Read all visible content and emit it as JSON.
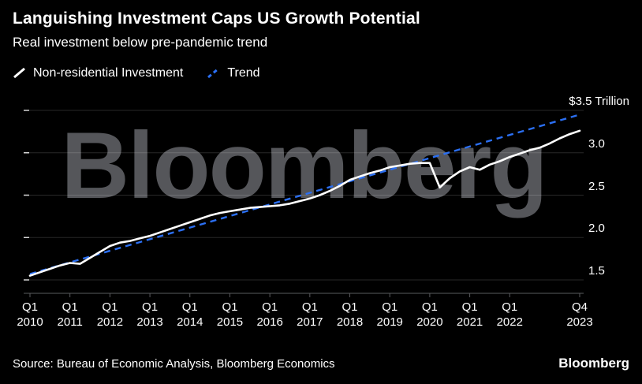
{
  "header": {
    "title": "Languishing Investment Caps US Growth Potential",
    "subtitle": "Real investment below pre-pandemic trend"
  },
  "legend": [
    {
      "label": "Non-residential Investment",
      "color": "#ffffff",
      "style": "solid"
    },
    {
      "label": "Trend",
      "color": "#2b6ff2",
      "style": "dashed"
    }
  ],
  "colors": {
    "background": "#000000",
    "text": "#ffffff",
    "trend_blue": "#2b6ff2",
    "grid": "rgba(255,255,255,0.16)",
    "axis": "#5a5b5e",
    "tick": "#d6d6d6",
    "watermark": "#55565a"
  },
  "watermark": "Bloomberg",
  "chart_data": {
    "type": "line",
    "unit": "$ Trillion",
    "title": "Languishing Investment Caps US Growth Potential",
    "subtitle": "Real investment below pre-pandemic trend",
    "ylim": [
      1.4,
      3.5
    ],
    "grid": true,
    "legend_position": "top-left",
    "x_ticks": [
      {
        "q": 0,
        "quarter": "Q1",
        "year": "2010"
      },
      {
        "q": 4,
        "quarter": "Q1",
        "year": "2011"
      },
      {
        "q": 8,
        "quarter": "Q1",
        "year": "2012"
      },
      {
        "q": 12,
        "quarter": "Q1",
        "year": "2013"
      },
      {
        "q": 16,
        "quarter": "Q1",
        "year": "2014"
      },
      {
        "q": 20,
        "quarter": "Q1",
        "year": "2015"
      },
      {
        "q": 24,
        "quarter": "Q1",
        "year": "2016"
      },
      {
        "q": 28,
        "quarter": "Q1",
        "year": "2017"
      },
      {
        "q": 32,
        "quarter": "Q1",
        "year": "2018"
      },
      {
        "q": 36,
        "quarter": "Q1",
        "year": "2019"
      },
      {
        "q": 40,
        "quarter": "Q1",
        "year": "2020"
      },
      {
        "q": 44,
        "quarter": "Q1",
        "year": "2021"
      },
      {
        "q": 48,
        "quarter": "Q1",
        "year": "2022"
      },
      {
        "q": 55,
        "quarter": "Q4",
        "year": "2023"
      }
    ],
    "y_ticks": [
      {
        "value": 1.5,
        "label": "1.5"
      },
      {
        "value": 2.0,
        "label": "2.0"
      },
      {
        "value": 2.5,
        "label": "2.5"
      },
      {
        "value": 3.0,
        "label": "3.0"
      },
      {
        "value": 3.5,
        "label": "$3.5 Trillion",
        "edge": "right"
      }
    ],
    "series": [
      {
        "name": "Non-residential Investment",
        "color": "#ffffff",
        "style": "solid",
        "values": [
          1.55,
          1.59,
          1.63,
          1.67,
          1.7,
          1.69,
          1.76,
          1.83,
          1.9,
          1.94,
          1.96,
          1.99,
          2.02,
          2.06,
          2.1,
          2.14,
          2.18,
          2.22,
          2.26,
          2.29,
          2.31,
          2.33,
          2.35,
          2.36,
          2.37,
          2.38,
          2.4,
          2.43,
          2.46,
          2.5,
          2.55,
          2.61,
          2.68,
          2.72,
          2.76,
          2.79,
          2.83,
          2.85,
          2.87,
          2.88,
          2.88,
          2.59,
          2.7,
          2.78,
          2.83,
          2.8,
          2.86,
          2.9,
          2.95,
          2.99,
          3.03,
          3.06,
          3.11,
          3.17,
          3.22,
          3.26
        ]
      },
      {
        "name": "Trend",
        "color": "#2b6ff2",
        "style": "dashed",
        "start": 1.57,
        "end": 3.45
      }
    ]
  },
  "footer": {
    "source": "Source: Bureau of Economic Analysis, Bloomberg Economics",
    "logo": "Bloomberg"
  }
}
